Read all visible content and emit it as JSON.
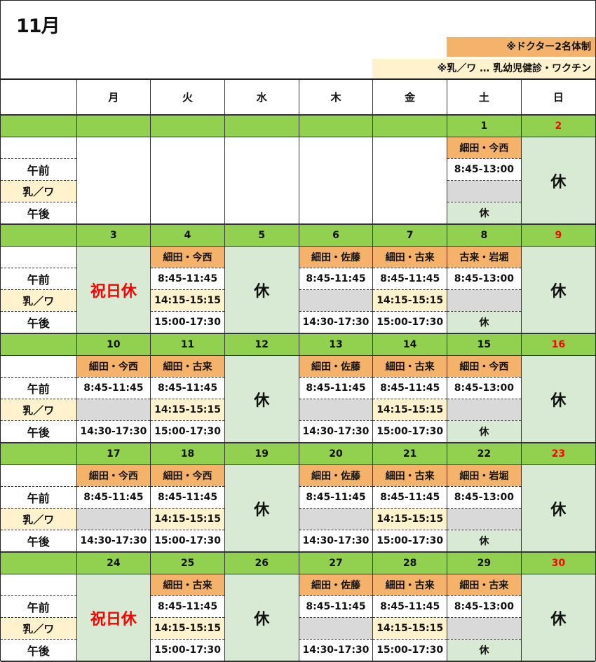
{
  "title": "11月",
  "legend": {
    "doctors2": "※ドクター2名体制",
    "nyu": "※乳／ワ … 乳幼児健診・ワクチン"
  },
  "colors": {
    "date_row": "#92d050",
    "doctors": "#f4b26b",
    "nyu": "#fff2cc",
    "closed": "#d8ead3",
    "no_service": "#d9d9d9",
    "sunday": "#ff0000"
  },
  "weekdays": [
    "月",
    "火",
    "水",
    "木",
    "金",
    "土",
    "日"
  ],
  "row_labels": {
    "am": "午前",
    "nyu": "乳／ワ",
    "pm": "午後"
  },
  "weeks": [
    {
      "dates": [
        "",
        "",
        "",
        "",
        "",
        "1",
        "2"
      ],
      "days": [
        {
          "type": "blank"
        },
        {
          "type": "blank"
        },
        {
          "type": "blank"
        },
        {
          "type": "blank"
        },
        {
          "type": "blank"
        },
        {
          "type": "open",
          "doctors": "細田・今西",
          "am": "8:45-13:00",
          "nyu": null,
          "pm": "休",
          "pm_closed": true
        },
        {
          "type": "closed",
          "label": "休"
        }
      ]
    },
    {
      "dates": [
        "3",
        "4",
        "5",
        "6",
        "7",
        "8",
        "9"
      ],
      "days": [
        {
          "type": "holiday",
          "label": "祝日休"
        },
        {
          "type": "open",
          "doctors": "細田・今西",
          "am": "8:45-11:45",
          "nyu": "14:15-15:15",
          "pm": "15:00-17:30"
        },
        {
          "type": "closed",
          "label": "休"
        },
        {
          "type": "open",
          "doctors": "細田・佐藤",
          "am": "8:45-11:45",
          "nyu": null,
          "pm": "14:30-17:30"
        },
        {
          "type": "open",
          "doctors": "細田・古来",
          "am": "8:45-11:45",
          "nyu": "14:15-15:15",
          "pm": "15:00-17:30"
        },
        {
          "type": "open",
          "doctors": "古来・岩堀",
          "am": "8:45-13:00",
          "nyu": null,
          "pm": "休",
          "pm_closed": true
        },
        {
          "type": "closed",
          "label": "休"
        }
      ]
    },
    {
      "dates": [
        "10",
        "11",
        "12",
        "13",
        "14",
        "15",
        "16"
      ],
      "days": [
        {
          "type": "open",
          "doctors": "細田・今西",
          "am": "8:45-11:45",
          "nyu": null,
          "pm": "14:30-17:30"
        },
        {
          "type": "open",
          "doctors": "細田・古来",
          "am": "8:45-11:45",
          "nyu": "14:15-15:15",
          "pm": "15:00-17:30"
        },
        {
          "type": "closed",
          "label": "休"
        },
        {
          "type": "open",
          "doctors": "細田・佐藤",
          "am": "8:45-11:45",
          "nyu": null,
          "pm": "14:30-17:30"
        },
        {
          "type": "open",
          "doctors": "細田・古来",
          "am": "8:45-11:45",
          "nyu": "14:15-15:15",
          "pm": "15:00-17:30"
        },
        {
          "type": "open",
          "doctors": "細田・今西",
          "am": "8:45-13:00",
          "nyu": null,
          "pm": "休",
          "pm_closed": true
        },
        {
          "type": "closed",
          "label": "休"
        }
      ]
    },
    {
      "dates": [
        "17",
        "18",
        "19",
        "20",
        "21",
        "22",
        "23"
      ],
      "days": [
        {
          "type": "open",
          "doctors": "細田・今西",
          "am": "8:45-11:45",
          "nyu": null,
          "pm": "14:30-17:30"
        },
        {
          "type": "open",
          "doctors": "細田・今西",
          "am": "8:45-11:45",
          "nyu": "14:15-15:15",
          "pm": "15:00-17:30"
        },
        {
          "type": "closed",
          "label": "休"
        },
        {
          "type": "open",
          "doctors": "細田・佐藤",
          "am": "8:45-11:45",
          "nyu": null,
          "pm": "14:30-17:30"
        },
        {
          "type": "open",
          "doctors": "細田・古来",
          "am": "8:45-11:45",
          "nyu": "14:15-15:15",
          "pm": "15:00-17:30"
        },
        {
          "type": "open",
          "doctors": "細田・岩堀",
          "am": "8:45-13:00",
          "nyu": null,
          "pm": "休",
          "pm_closed": true
        },
        {
          "type": "closed",
          "label": "休"
        }
      ]
    },
    {
      "dates": [
        "24",
        "25",
        "26",
        "27",
        "28",
        "29",
        "30"
      ],
      "days": [
        {
          "type": "holiday",
          "label": "祝日休"
        },
        {
          "type": "open",
          "doctors": "細田・古来",
          "am": "8:45-11:45",
          "nyu": "14:15-15:15",
          "pm": "15:00-17:30"
        },
        {
          "type": "closed",
          "label": "休"
        },
        {
          "type": "open",
          "doctors": "細田・佐藤",
          "am": "8:45-11:45",
          "nyu": null,
          "pm": "14:30-17:30"
        },
        {
          "type": "open",
          "doctors": "細田・古来",
          "am": "8:45-11:45",
          "nyu": "14:15-15:15",
          "pm": "15:00-17:30"
        },
        {
          "type": "open",
          "doctors": "細田・古来",
          "am": "8:45-13:00",
          "nyu": null,
          "pm": "休",
          "pm_closed": true
        },
        {
          "type": "closed",
          "label": "休"
        }
      ]
    }
  ]
}
